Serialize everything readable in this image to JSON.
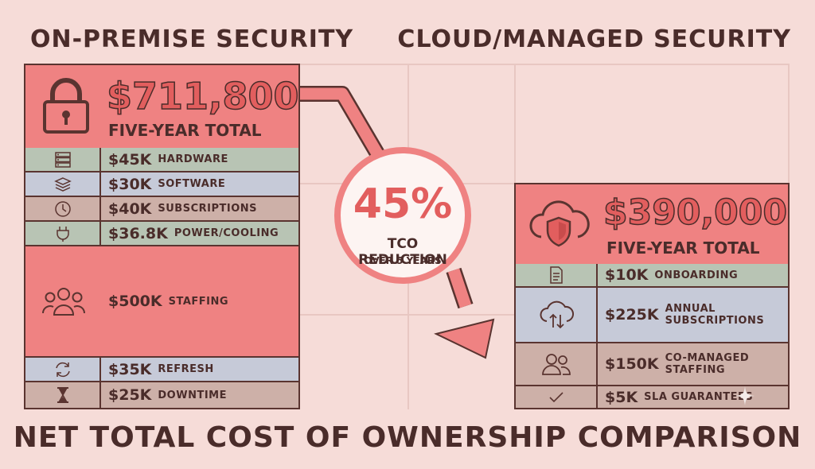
{
  "titles": {
    "left": "ON-PREMISE SECURITY",
    "right": "CLOUD/MANAGED SECURITY",
    "bottom": "NET TOTAL COST OF OWNERSHIP COMPARISON"
  },
  "onprem": {
    "total": "$711,800",
    "total_label": "FIVE-YEAR TOTAL",
    "rows": [
      {
        "amount": "$45K",
        "label": "HARDWARE",
        "icon": "server-icon"
      },
      {
        "amount": "$30K",
        "label": "SOFTWARE",
        "icon": "layers-icon"
      },
      {
        "amount": "$40K",
        "label": "SUBSCRIPTIONS",
        "icon": "clock-icon"
      },
      {
        "amount": "$36.8K",
        "label": "POWER/COOLING",
        "icon": "plug-icon"
      },
      {
        "amount": "$500K",
        "label": "STAFFING",
        "icon": "people-icon"
      },
      {
        "amount": "$35K",
        "label": "REFRESH",
        "icon": "refresh-icon"
      },
      {
        "amount": "$25K",
        "label": "DOWNTIME",
        "icon": "hourglass-icon"
      }
    ]
  },
  "cloud": {
    "total": "$390,000",
    "total_label": "FIVE-YEAR TOTAL",
    "rows": [
      {
        "amount": "$10K",
        "label": "ONBOARDING",
        "icon": "document-icon"
      },
      {
        "amount": "$225K",
        "label": "ANNUAL SUBSCRIPTIONS",
        "label_lines": [
          "ANNUAL",
          "SUBSCRIPTIONS"
        ],
        "icon": "cloud-sync-icon"
      },
      {
        "amount": "$150K",
        "label": "CO-MANAGED STAFFING",
        "label_lines": [
          "CO-MANAGED",
          "STAFFING"
        ],
        "icon": "people-icon"
      },
      {
        "amount": "$5K",
        "label": "SLA GUARANTEES",
        "icon": "check-icon"
      }
    ]
  },
  "reduction": {
    "percent": "45%",
    "label": "TCO REDUCTION",
    "sublabel": "OVER 5 YEARS"
  },
  "colors": {
    "background": "#f6dcd8",
    "accent_red": "#ef8282",
    "text_red": "#e25e5e",
    "row_green": "#b8c4b4",
    "row_blue": "#c6cad8",
    "row_tan": "#cdb0a8",
    "ink": "#4a2c2a"
  }
}
